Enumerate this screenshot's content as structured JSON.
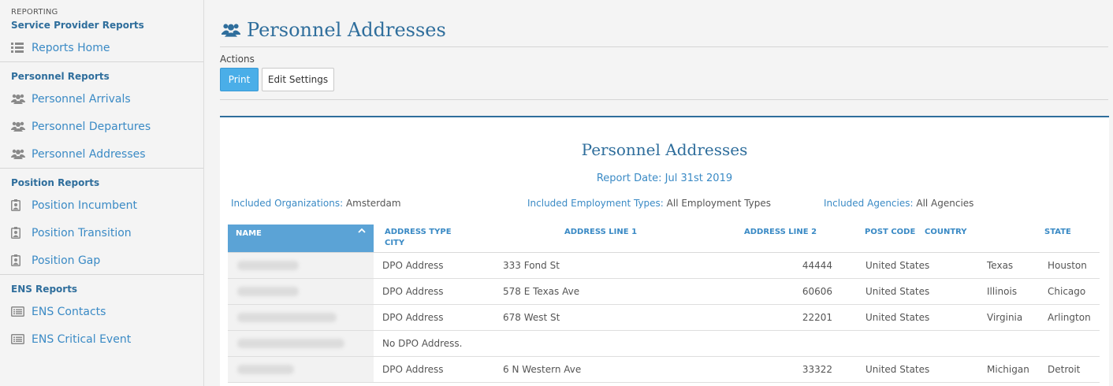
{
  "sidebar": {
    "kicker": "REPORTING",
    "groups": [
      {
        "heading": "Service Provider Reports",
        "items": [
          {
            "label": "Reports Home",
            "icon": "list-icon"
          }
        ]
      },
      {
        "heading": "Personnel Reports",
        "items": [
          {
            "label": "Personnel Arrivals",
            "icon": "users-icon"
          },
          {
            "label": "Personnel Departures",
            "icon": "users-icon"
          },
          {
            "label": "Personnel Addresses",
            "icon": "users-icon"
          }
        ]
      },
      {
        "heading": "Position Reports",
        "items": [
          {
            "label": "Position Incumbent",
            "icon": "badge-icon"
          },
          {
            "label": "Position Transition",
            "icon": "badge-icon"
          },
          {
            "label": "Position Gap",
            "icon": "badge-icon"
          }
        ]
      },
      {
        "heading": "ENS Reports",
        "items": [
          {
            "label": "ENS Contacts",
            "icon": "card-list-icon"
          },
          {
            "label": "ENS Critical Event",
            "icon": "card-list-icon"
          }
        ]
      }
    ]
  },
  "page": {
    "title": "Personnel Addresses",
    "actions_label": "Actions",
    "print_label": "Print",
    "edit_label": "Edit Settings"
  },
  "report": {
    "title": "Personnel Addresses",
    "date": "Report Date: Jul 31st 2019",
    "filters": [
      {
        "label": "Included Organizations:",
        "value": " Amsterdam"
      },
      {
        "label": "Included Employment Types:",
        "value": " All Employment Types"
      },
      {
        "label": "Included Agencies:",
        "value": " All Agencies"
      }
    ],
    "headers": {
      "name": "NAME",
      "address_type": "ADDRESS TYPE",
      "city": "CITY",
      "line1": "ADDRESS LINE 1",
      "line2": "ADDRESS LINE 2",
      "post_code": "POST CODE",
      "country": "COUNTRY",
      "state": "STATE"
    },
    "rows": [
      {
        "type": "DPO Address",
        "line1": "333 Fond St",
        "post": "44444",
        "country": "United States",
        "state": "Texas",
        "city": "Houston"
      },
      {
        "type": "DPO Address",
        "line1": "578 E Texas Ave",
        "post": "60606",
        "country": "United States",
        "state": "Illinois",
        "city": "Chicago"
      },
      {
        "type": "DPO Address",
        "line1": "678 West St",
        "post": "22201",
        "country": "United States",
        "state": "Virginia",
        "city": "Arlington"
      },
      {
        "type": "No DPO Address.",
        "line1": "",
        "post": "",
        "country": "",
        "state": "",
        "city": ""
      },
      {
        "type": "DPO Address",
        "line1": "6 N Western Ave",
        "post": "33322",
        "country": "United States",
        "state": "Michigan",
        "city": "Detroit"
      }
    ]
  },
  "colors": {
    "accent": "#2f6e9c",
    "link": "#3a8ac5",
    "print_button": "#4aaee8",
    "header_bg": "#5ba3d6"
  }
}
